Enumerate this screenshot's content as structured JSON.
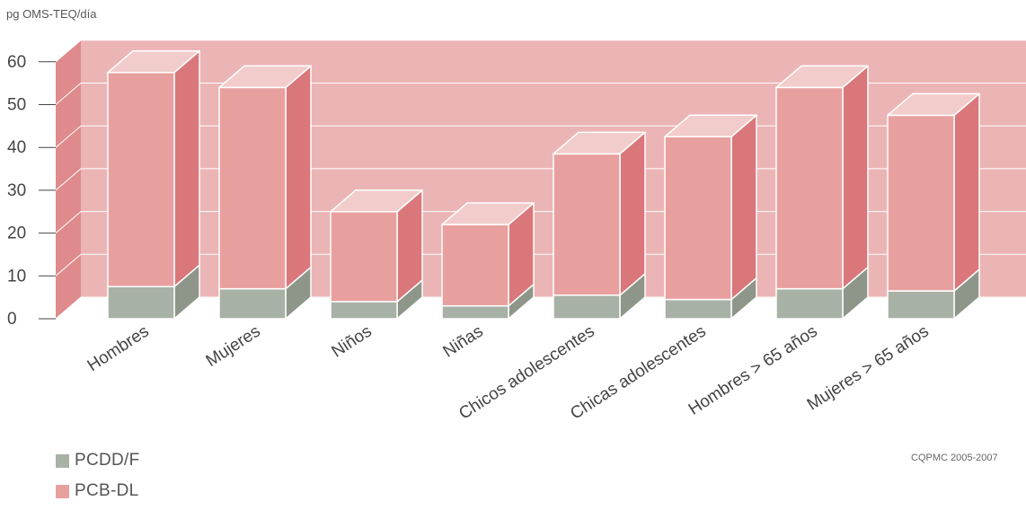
{
  "ylabel": "pg OMS-TEQ/día",
  "source": "CQPMC 2005-2007",
  "legend": [
    {
      "label": "PCDD/F",
      "color": "#a8b1a5"
    },
    {
      "label": "PCB-DL",
      "color": "#e8a09f"
    }
  ],
  "colors": {
    "wall": "#ecb5b5",
    "wall_side": "#df8a8c",
    "pcb_front": "#e8a09f",
    "pcb_side": "#d9777b",
    "pcb_top": "#f2cccb",
    "pcdd_front": "#a8b1a5",
    "pcdd_side": "#8e9689"
  },
  "chart_data": {
    "type": "bar",
    "stacked": true,
    "three_d": true,
    "categories": [
      "Hombres",
      "Mujeres",
      "Niños",
      "Niñas",
      "Chicos adolescentes",
      "Chicas adolescentes",
      "Hombres > 65 años",
      "Mujeres > 65 años"
    ],
    "series": [
      {
        "name": "PCDD/F",
        "values": [
          7.5,
          7,
          4,
          3,
          5.5,
          4.5,
          7,
          6.5
        ]
      },
      {
        "name": "PCB-DL",
        "values": [
          50,
          47,
          21,
          19,
          33,
          38,
          47,
          41
        ]
      }
    ],
    "yticks": [
      0,
      10,
      20,
      30,
      40,
      50,
      60
    ],
    "ylim": [
      0,
      60
    ],
    "grid": true,
    "legend_position": "bottom-left"
  }
}
